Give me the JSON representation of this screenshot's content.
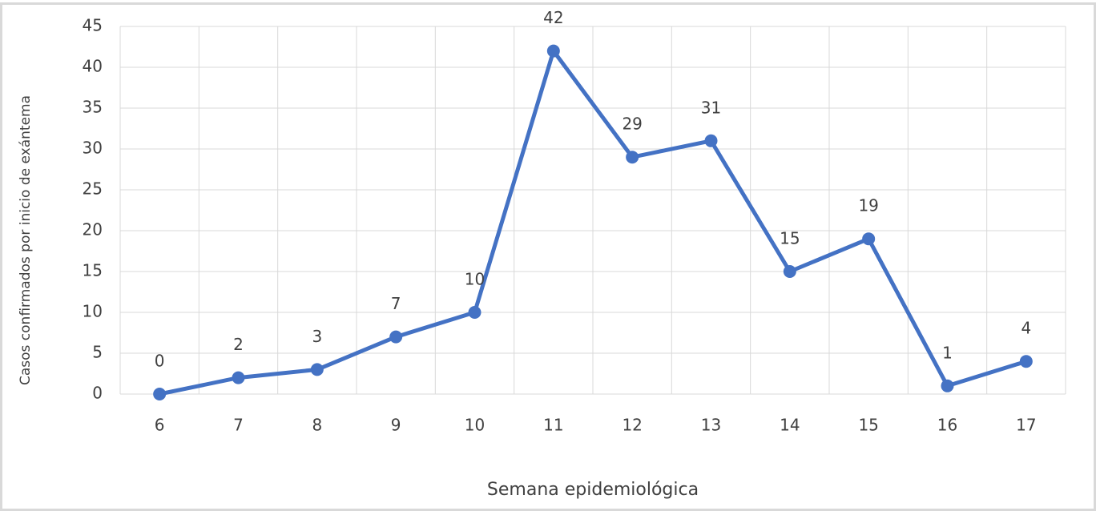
{
  "chart_data": {
    "type": "line",
    "categories": [
      "6",
      "7",
      "8",
      "9",
      "10",
      "11",
      "12",
      "13",
      "14",
      "15",
      "16",
      "17"
    ],
    "series": [
      {
        "name": "Casos confirmados",
        "color": "#4472c4",
        "values": [
          0,
          2,
          3,
          7,
          10,
          42,
          29,
          31,
          15,
          19,
          1,
          4
        ]
      }
    ],
    "x_label": "Semana epidemiológica",
    "y_label": "Casos confirmados por inicio de exántema",
    "ylim": [
      0,
      45
    ],
    "yticks": [
      0,
      5,
      10,
      15,
      20,
      25,
      30,
      35,
      40,
      45
    ],
    "grid": true
  }
}
